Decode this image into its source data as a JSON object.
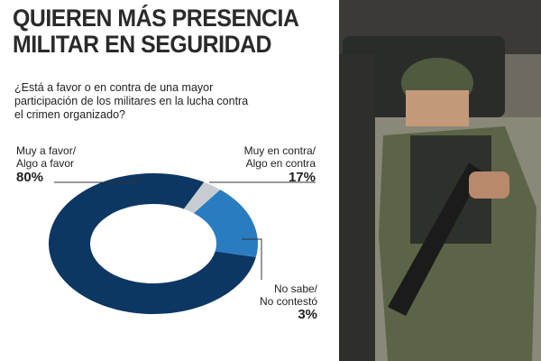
{
  "chart_data": {
    "type": "pie",
    "title": "QUIEREN MÁS PRESENCIA\nMILITAR EN SEGURIDAD",
    "subtitle": "¿Está a favor o en contra de una mayor\nparticipación de los militares en la lucha contra\nel crimen organizado?",
    "categories": [
      "Muy a favor/\nAlgo a favor",
      "Muy en contra/\nAlgo en contra",
      "No sabe/\nNo contestó"
    ],
    "values": [
      80,
      17,
      3
    ],
    "value_labels": [
      "80%",
      "17%",
      "3%"
    ],
    "colors": [
      "#0c3763",
      "#2a7cc0",
      "#c9cdd1"
    ]
  }
}
